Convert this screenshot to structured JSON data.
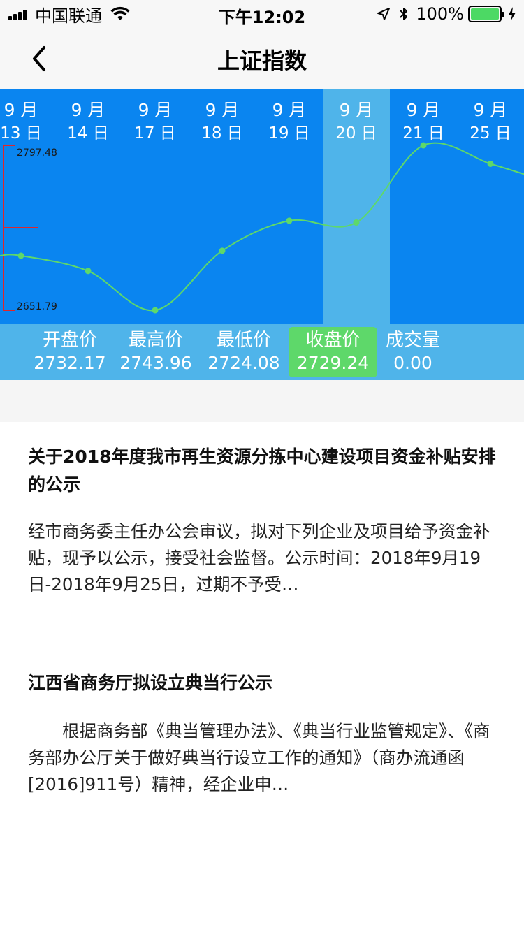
{
  "status_bar": {
    "carrier": "中国联通",
    "time": "下午12:02",
    "battery": "100%",
    "battery_level": 1.0
  },
  "nav": {
    "title": "上证指数"
  },
  "colors": {
    "chart_bg": "#0a85f0",
    "chart_highlight": "#4fb4ea",
    "line": "#5ed86a",
    "axis": "#e0262b",
    "price_bar_bg": "#4fb4ea",
    "active_price_bg": "#5ed86a"
  },
  "chart_data": {
    "type": "line",
    "x": [
      "9月13日",
      "9月14日",
      "9月17日",
      "9月18日",
      "9月19日",
      "9月20日",
      "9月21日",
      "9月25日"
    ],
    "x_month": [
      "9 月",
      "9 月",
      "9 月",
      "9 月",
      "9 月",
      "9 月",
      "9 月",
      "9 月"
    ],
    "x_day": [
      "13 日",
      "14 日",
      "17 日",
      "18 日",
      "19 日",
      "20 日",
      "21 日",
      "25 日"
    ],
    "series": [
      {
        "values": [
          2699.95,
          2686.5,
          2651.79,
          2704.34,
          2730.85,
          2729.24,
          2797.48,
          2781.14
        ]
      }
    ],
    "y_max_label": "2797.48",
    "y_min_label": "2651.79",
    "ylim": [
      2651.79,
      2797.48
    ],
    "highlight_index": 5,
    "grid": false
  },
  "prices": [
    {
      "label": "开盘价",
      "value": "2732.17",
      "active": false
    },
    {
      "label": "最高价",
      "value": "2743.96",
      "active": false
    },
    {
      "label": "最低价",
      "value": "2724.08",
      "active": false
    },
    {
      "label": "收盘价",
      "value": "2729.24",
      "active": true
    },
    {
      "label": "成交量",
      "value": "0.00",
      "active": false
    }
  ],
  "news": [
    {
      "title": "关于2018年度我市再生资源分拣中心建设项目资金补贴安排的公示",
      "summary": "经市商务委主任办公会审议，拟对下列企业及项目给予资金补贴，现予以公示，接受社会监督。公示时间：2018年9月19日-2018年9月25日，过期不予受…"
    },
    {
      "title": "江西省商务厅拟设立典当行公示",
      "summary": "　　根据商务部《典当管理办法》、《典当行业监管规定》、《商务部办公厅关于做好典当行设立工作的通知》（商办流通函[2016]911号）精神，经企业申…"
    }
  ]
}
